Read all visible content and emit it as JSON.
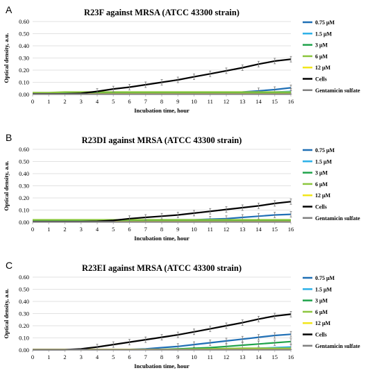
{
  "chart_data": [
    {
      "type": "line",
      "panel_label": "A",
      "title": "R23F against MRSA (ATCC 43300 strain)",
      "xlabel": "Incubation time, hour",
      "ylabel": "Optical density, a.u.",
      "xlim": [
        0,
        16
      ],
      "ylim": [
        0,
        0.6
      ],
      "x_ticks": [
        "0",
        "1",
        "2",
        "3",
        "4",
        "5",
        "6",
        "7",
        "8",
        "9",
        "10",
        "11",
        "12",
        "13",
        "14",
        "15",
        "16"
      ],
      "y_ticks": [
        "0.00",
        "0.10",
        "0.20",
        "0.30",
        "0.40",
        "0.50",
        "0.60"
      ],
      "grid": "horizontal",
      "legend_position": "right",
      "x": [
        0,
        1,
        2,
        3,
        4,
        5,
        6,
        7,
        8,
        9,
        10,
        11,
        12,
        13,
        14,
        15,
        16
      ],
      "series": [
        {
          "name": "0.75 μM",
          "color": "#1f6fb5",
          "values": [
            0.01,
            0.01,
            0.01,
            0.01,
            0.01,
            0.01,
            0.01,
            0.01,
            0.01,
            0.01,
            0.01,
            0.01,
            0.015,
            0.02,
            0.03,
            0.04,
            0.055
          ]
        },
        {
          "name": "1.5 μM",
          "color": "#2bb0e8",
          "values": [
            0.01,
            0.01,
            0.01,
            0.01,
            0.01,
            0.01,
            0.01,
            0.01,
            0.01,
            0.01,
            0.01,
            0.01,
            0.01,
            0.012,
            0.015,
            0.02,
            0.025
          ]
        },
        {
          "name": "3 μM",
          "color": "#1fa34a",
          "values": [
            0.01,
            0.01,
            0.012,
            0.012,
            0.012,
            0.012,
            0.012,
            0.012,
            0.012,
            0.012,
            0.012,
            0.012,
            0.012,
            0.012,
            0.012,
            0.012,
            0.012
          ]
        },
        {
          "name": "6 μM",
          "color": "#8cc63e",
          "values": [
            0.015,
            0.015,
            0.02,
            0.02,
            0.02,
            0.02,
            0.02,
            0.02,
            0.02,
            0.02,
            0.02,
            0.02,
            0.02,
            0.02,
            0.02,
            0.02,
            0.02
          ]
        },
        {
          "name": "12 μM",
          "color": "#f2e61a",
          "values": [
            0.005,
            0.005,
            0.005,
            0.005,
            0.005,
            0.005,
            0.005,
            0.005,
            0.005,
            0.005,
            0.005,
            0.005,
            0.005,
            0.005,
            0.005,
            0.005,
            0.005
          ]
        },
        {
          "name": "Cells",
          "color": "#000000",
          "values": [
            0.005,
            0.005,
            0.005,
            0.01,
            0.025,
            0.045,
            0.06,
            0.08,
            0.1,
            0.12,
            0.145,
            0.17,
            0.195,
            0.22,
            0.25,
            0.275,
            0.29
          ]
        },
        {
          "name": "Gentamicin sulfate",
          "color": "#808080",
          "values": [
            0.003,
            0.003,
            0.003,
            0.003,
            0.003,
            0.003,
            0.003,
            0.003,
            0.003,
            0.003,
            0.003,
            0.003,
            0.003,
            0.003,
            0.003,
            0.003,
            0.003
          ]
        }
      ]
    },
    {
      "type": "line",
      "panel_label": "B",
      "title": "R23DI against MRSA (ATCC 43300 strain)",
      "xlabel": "Incubation time, hour",
      "ylabel": "Optical density, a.u.",
      "xlim": [
        0,
        16
      ],
      "ylim": [
        0,
        0.6
      ],
      "x_ticks": [
        "0",
        "1",
        "2",
        "3",
        "4",
        "5",
        "6",
        "7",
        "8",
        "9",
        "10",
        "11",
        "12",
        "13",
        "14",
        "15",
        "16"
      ],
      "y_ticks": [
        "0.00",
        "0.10",
        "0.20",
        "0.30",
        "0.40",
        "0.50",
        "0.60"
      ],
      "grid": "horizontal",
      "legend_position": "right",
      "x": [
        0,
        1,
        2,
        3,
        4,
        5,
        6,
        7,
        8,
        9,
        10,
        11,
        12,
        13,
        14,
        15,
        16
      ],
      "series": [
        {
          "name": "0.75 μM",
          "color": "#1f6fb5",
          "values": [
            0.01,
            0.01,
            0.01,
            0.01,
            0.01,
            0.01,
            0.015,
            0.02,
            0.02,
            0.02,
            0.02,
            0.025,
            0.03,
            0.04,
            0.05,
            0.06,
            0.065
          ]
        },
        {
          "name": "1.5 μM",
          "color": "#2bb0e8",
          "values": [
            0.01,
            0.01,
            0.01,
            0.01,
            0.01,
            0.01,
            0.01,
            0.01,
            0.01,
            0.01,
            0.01,
            0.01,
            0.01,
            0.01,
            0.01,
            0.01,
            0.01
          ]
        },
        {
          "name": "3 μM",
          "color": "#1fa34a",
          "values": [
            0.015,
            0.015,
            0.015,
            0.015,
            0.015,
            0.015,
            0.015,
            0.015,
            0.015,
            0.015,
            0.015,
            0.015,
            0.015,
            0.015,
            0.015,
            0.015,
            0.015
          ]
        },
        {
          "name": "6 μM",
          "color": "#8cc63e",
          "values": [
            0.02,
            0.02,
            0.02,
            0.02,
            0.02,
            0.02,
            0.02,
            0.02,
            0.02,
            0.02,
            0.02,
            0.02,
            0.02,
            0.02,
            0.02,
            0.02,
            0.02
          ]
        },
        {
          "name": "12 μM",
          "color": "#f2e61a",
          "values": [
            0.005,
            0.005,
            0.005,
            0.005,
            0.005,
            0.005,
            0.005,
            0.005,
            0.005,
            0.005,
            0.005,
            0.005,
            0.005,
            0.005,
            0.005,
            0.005,
            0.005
          ]
        },
        {
          "name": "Cells",
          "color": "#000000",
          "values": [
            0.005,
            0.005,
            0.005,
            0.005,
            0.008,
            0.015,
            0.03,
            0.04,
            0.05,
            0.06,
            0.075,
            0.09,
            0.105,
            0.12,
            0.135,
            0.155,
            0.17
          ]
        },
        {
          "name": "Gentamicin sulfate",
          "color": "#808080",
          "values": [
            0.003,
            0.003,
            0.003,
            0.003,
            0.003,
            0.003,
            0.003,
            0.003,
            0.003,
            0.003,
            0.003,
            0.003,
            0.003,
            0.003,
            0.003,
            0.003,
            0.003
          ]
        }
      ]
    },
    {
      "type": "line",
      "panel_label": "C",
      "title": "R23EI against MRSA (ATCC 43300 strain)",
      "xlabel": "Incubation time, hour",
      "ylabel": "Optical density, a.u.",
      "xlim": [
        0,
        16
      ],
      "ylim": [
        0,
        0.6
      ],
      "x_ticks": [
        "0",
        "1",
        "2",
        "3",
        "4",
        "5",
        "6",
        "7",
        "8",
        "9",
        "10",
        "11",
        "12",
        "13",
        "14",
        "15",
        "16"
      ],
      "y_ticks": [
        "0.00",
        "0.10",
        "0.20",
        "0.30",
        "0.40",
        "0.50",
        "0.60"
      ],
      "grid": "horizontal",
      "legend_position": "right",
      "x": [
        0,
        1,
        2,
        3,
        4,
        5,
        6,
        7,
        8,
        9,
        10,
        11,
        12,
        13,
        14,
        15,
        16
      ],
      "series": [
        {
          "name": "0.75 μM",
          "color": "#1f6fb5",
          "values": [
            0.005,
            0.005,
            0.005,
            0.005,
            0.005,
            0.005,
            0.005,
            0.01,
            0.02,
            0.03,
            0.045,
            0.06,
            0.075,
            0.09,
            0.105,
            0.12,
            0.13
          ]
        },
        {
          "name": "1.5 μM",
          "color": "#2bb0e8",
          "values": [
            0.005,
            0.005,
            0.005,
            0.005,
            0.005,
            0.005,
            0.005,
            0.005,
            0.005,
            0.005,
            0.005,
            0.005,
            0.008,
            0.01,
            0.015,
            0.02,
            0.025
          ]
        },
        {
          "name": "3 μM",
          "color": "#1fa34a",
          "values": [
            0.005,
            0.005,
            0.005,
            0.005,
            0.005,
            0.005,
            0.005,
            0.005,
            0.005,
            0.01,
            0.015,
            0.02,
            0.03,
            0.04,
            0.05,
            0.06,
            0.07
          ]
        },
        {
          "name": "6 μM",
          "color": "#8cc63e",
          "values": [
            0.005,
            0.005,
            0.005,
            0.005,
            0.005,
            0.005,
            0.005,
            0.005,
            0.005,
            0.005,
            0.008,
            0.01,
            0.012,
            0.015,
            0.015,
            0.015,
            0.015
          ]
        },
        {
          "name": "12 μM",
          "color": "#f2e61a",
          "values": [
            0.005,
            0.005,
            0.005,
            0.005,
            0.005,
            0.005,
            0.005,
            0.005,
            0.005,
            0.005,
            0.005,
            0.005,
            0.005,
            0.005,
            0.005,
            0.005,
            0.005
          ]
        },
        {
          "name": "Cells",
          "color": "#000000",
          "values": [
            0.003,
            0.003,
            0.003,
            0.01,
            0.025,
            0.045,
            0.065,
            0.085,
            0.105,
            0.125,
            0.15,
            0.175,
            0.2,
            0.225,
            0.255,
            0.28,
            0.295
          ]
        },
        {
          "name": "Gentamicin sulfate",
          "color": "#808080",
          "values": [
            0.003,
            0.003,
            0.003,
            0.003,
            0.003,
            0.003,
            0.003,
            0.003,
            0.003,
            0.003,
            0.003,
            0.003,
            0.003,
            0.003,
            0.003,
            0.003,
            0.003
          ]
        }
      ]
    }
  ]
}
